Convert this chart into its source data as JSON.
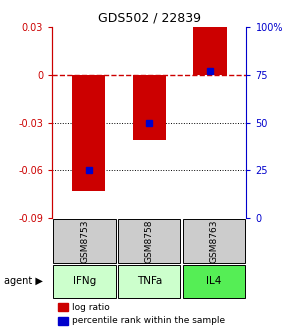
{
  "title": "GDS502 / 22839",
  "categories": [
    "IFNg",
    "TNFa",
    "IL4"
  ],
  "gsm_labels": [
    "GSM8753",
    "GSM8758",
    "GSM8763"
  ],
  "log_ratios": [
    -0.073,
    -0.041,
    0.03
  ],
  "percentile_ranks_pct": [
    25,
    50,
    77
  ],
  "ylim_left": [
    -0.09,
    0.03
  ],
  "ylim_right": [
    0,
    100
  ],
  "bar_color": "#cc0000",
  "dot_color": "#0000cc",
  "zero_line_color": "#cc0000",
  "grid_color": "#000000",
  "gsm_bg_color": "#cccccc",
  "agent_bg_colors": [
    "#ccffcc",
    "#ccffcc",
    "#55ee55"
  ],
  "left_tick_color": "#cc0000",
  "right_tick_color": "#0000cc",
  "yticks_left": [
    0.03,
    0.0,
    -0.03,
    -0.06,
    -0.09
  ],
  "yticks_right": [
    100,
    75,
    50,
    25,
    0
  ],
  "bar_width": 0.55
}
